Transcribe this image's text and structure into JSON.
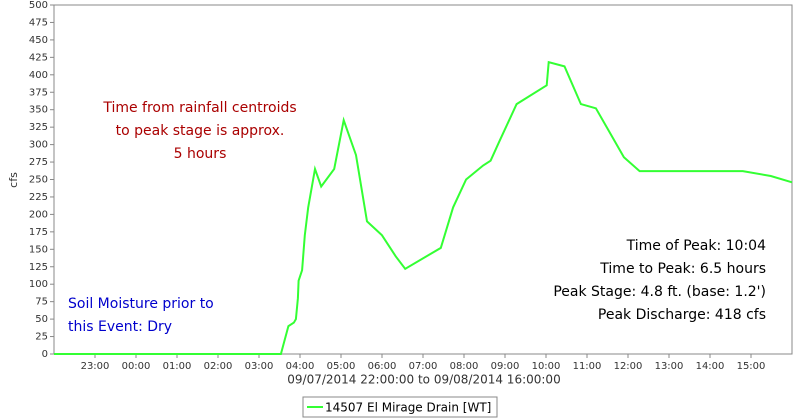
{
  "chart_data": {
    "type": "line",
    "y_label": "cfs",
    "x_label": "09/07/2014 22:00:00 to 09/08/2014 16:00:00",
    "xlim": [
      "09/07/2014 22:00",
      "09/08/2014 16:00"
    ],
    "xticks": [
      {
        "value": "09/07/2014 23:00",
        "label": "23:00"
      },
      {
        "value": "09/08/2014 00:00",
        "label": "00:00"
      },
      {
        "value": "09/08/2014 01:00",
        "label": "01:00"
      },
      {
        "value": "09/08/2014 02:00",
        "label": "02:00"
      },
      {
        "value": "09/08/2014 03:00",
        "label": "03:00"
      },
      {
        "value": "09/08/2014 04:00",
        "label": "04:00"
      },
      {
        "value": "09/08/2014 05:00",
        "label": "05:00"
      },
      {
        "value": "09/08/2014 06:00",
        "label": "06:00"
      },
      {
        "value": "09/08/2014 07:00",
        "label": "07:00"
      },
      {
        "value": "09/08/2014 08:00",
        "label": "08:00"
      },
      {
        "value": "09/08/2014 09:00",
        "label": "09:00"
      },
      {
        "value": "09/08/2014 10:00",
        "label": "10:00"
      },
      {
        "value": "09/08/2014 11:00",
        "label": "11:00"
      },
      {
        "value": "09/08/2014 12:00",
        "label": "12:00"
      },
      {
        "value": "09/08/2014 13:00",
        "label": "13:00"
      },
      {
        "value": "09/08/2014 14:00",
        "label": "14:00"
      },
      {
        "value": "09/08/2014 15:00",
        "label": "15:00"
      }
    ],
    "ylim": [
      0,
      500
    ],
    "yticks": [
      0,
      25,
      50,
      75,
      100,
      125,
      150,
      175,
      200,
      225,
      250,
      275,
      300,
      325,
      350,
      375,
      400,
      425,
      450,
      475,
      500
    ],
    "legend": "bottom",
    "series": [
      {
        "name": "14507 El Mirage Drain [WT]",
        "color": "#33ff33",
        "x": [
          "09/07/2014 22:00",
          "09/08/2014 03:32",
          "09/08/2014 03:43",
          "09/08/2014 03:51",
          "09/08/2014 03:54",
          "09/08/2014 03:57",
          "09/08/2014 03:58",
          "09/08/2014 04:03",
          "09/08/2014 04:07",
          "09/08/2014 04:12",
          "09/08/2014 04:22",
          "09/08/2014 04:31",
          "09/08/2014 04:50",
          "09/08/2014 05:04",
          "09/08/2014 05:22",
          "09/08/2014 05:38",
          "09/08/2014 06:00",
          "09/08/2014 06:20",
          "09/08/2014 06:34",
          "09/08/2014 07:26",
          "09/08/2014 07:44",
          "09/08/2014 08:03",
          "09/08/2014 08:28",
          "09/08/2014 08:39",
          "09/08/2014 08:52",
          "09/08/2014 09:17",
          "09/08/2014 10:01",
          "09/08/2014 10:04",
          "09/08/2014 10:27",
          "09/08/2014 10:51",
          "09/08/2014 11:13",
          "09/08/2014 11:54",
          "09/08/2014 12:17",
          "09/08/2014 14:48",
          "09/08/2014 15:29",
          "09/08/2014 16:00"
        ],
        "values": [
          0,
          0,
          40,
          45,
          50,
          80,
          105,
          120,
          170,
          210,
          265,
          240,
          265,
          335,
          285,
          190,
          170,
          140,
          122,
          152,
          210,
          250,
          270,
          277,
          305,
          358,
          385,
          418,
          412,
          358,
          352,
          282,
          262,
          262,
          255,
          246
        ]
      }
    ],
    "annotations": [
      {
        "color": "#aa0000",
        "align": "center",
        "lines": [
          "Time from rainfall centroids",
          "to peak stage is approx.",
          "5 hours"
        ]
      },
      {
        "color": "#0000cc",
        "align": "left",
        "lines": [
          "Soil Moisture prior to",
          "this Event: Dry"
        ]
      },
      {
        "color": "#000000",
        "align": "right",
        "lines": [
          "Time of Peak: 10:04",
          "Time to Peak: 6.5 hours",
          "Peak Stage: 4.8 ft. (base: 1.2')",
          "Peak Discharge: 418 cfs"
        ]
      }
    ]
  }
}
